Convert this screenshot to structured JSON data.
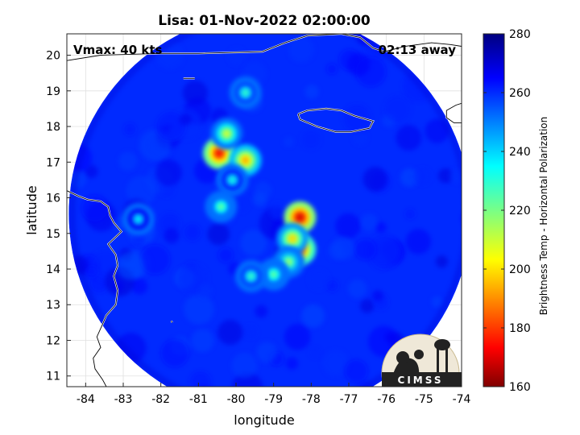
{
  "chart_data": {
    "type": "heatmap",
    "title": "Lisa: 01-Nov-2022 02:00:00",
    "xlabel": "longitude",
    "ylabel": "latitude",
    "xlim": [
      -84.5,
      -74
    ],
    "ylim": [
      10.7,
      20.6
    ],
    "xticks": [
      -84,
      -83,
      -82,
      -81,
      -80,
      -79,
      -78,
      -77,
      -76,
      -75,
      -74
    ],
    "yticks": [
      11,
      12,
      13,
      14,
      15,
      16,
      17,
      18,
      19,
      20
    ],
    "grid": true,
    "annotations": {
      "top_left": "Vmax: 40 kts",
      "top_right": "02:13 away",
      "logo": "CIMSS"
    },
    "swath": {
      "center_lon": -79.1,
      "center_lat": 15.55,
      "radius_deg": 5.35,
      "clipped_to_axes": true
    },
    "background_tb": 260,
    "features": [
      {
        "lon": -78.3,
        "lat": 15.45,
        "tb": 168
      },
      {
        "lon": -78.3,
        "lat": 14.55,
        "tb": 178
      },
      {
        "lon": -78.5,
        "lat": 14.85,
        "tb": 198
      },
      {
        "lon": -78.6,
        "lat": 14.2,
        "tb": 215
      },
      {
        "lon": -79.0,
        "lat": 13.85,
        "tb": 222
      },
      {
        "lon": -79.6,
        "lat": 13.8,
        "tb": 228
      },
      {
        "lon": -80.45,
        "lat": 17.25,
        "tb": 172
      },
      {
        "lon": -80.25,
        "lat": 17.8,
        "tb": 208
      },
      {
        "lon": -79.75,
        "lat": 17.05,
        "tb": 192
      },
      {
        "lon": -80.1,
        "lat": 16.5,
        "tb": 232
      },
      {
        "lon": -79.75,
        "lat": 18.95,
        "tb": 228
      },
      {
        "lon": -80.4,
        "lat": 15.75,
        "tb": 222
      },
      {
        "lon": -82.6,
        "lat": 15.4,
        "tb": 236
      }
    ],
    "colorbar": {
      "label": "Brightness Temp - Horizontal Polarization",
      "range": [
        160,
        280
      ],
      "ticks": [
        160,
        180,
        200,
        220,
        240,
        260,
        280
      ],
      "colormap": "jet"
    },
    "coastlines": {
      "jamaica": [
        [
          -78.35,
          18.35
        ],
        [
          -78.1,
          18.45
        ],
        [
          -77.6,
          18.5
        ],
        [
          -77.2,
          18.45
        ],
        [
          -76.85,
          18.3
        ],
        [
          -76.35,
          18.15
        ],
        [
          -76.45,
          17.95
        ],
        [
          -76.95,
          17.85
        ],
        [
          -77.35,
          17.85
        ],
        [
          -77.85,
          18.0
        ],
        [
          -78.3,
          18.2
        ],
        [
          -78.35,
          18.35
        ]
      ],
      "cuba": [
        [
          -84.5,
          19.85
        ],
        [
          -83.6,
          20.0
        ],
        [
          -82.0,
          20.05
        ],
        [
          -81.0,
          20.05
        ],
        [
          -79.3,
          20.1
        ],
        [
          -78.7,
          20.35
        ],
        [
          -78.1,
          20.55
        ],
        [
          -77.2,
          20.6
        ],
        [
          -76.7,
          20.5
        ],
        [
          -76.35,
          20.2
        ],
        [
          -76.05,
          20.1
        ],
        [
          -75.5,
          20.25
        ],
        [
          -74.8,
          20.35
        ],
        [
          -74.3,
          20.3
        ],
        [
          -74.0,
          20.25
        ]
      ],
      "haiti": [
        [
          -74.0,
          18.65
        ],
        [
          -74.15,
          18.6
        ],
        [
          -74.4,
          18.45
        ],
        [
          -74.4,
          18.25
        ],
        [
          -74.2,
          18.1
        ],
        [
          -74.0,
          18.1
        ]
      ],
      "central_america": [
        [
          -84.5,
          16.2
        ],
        [
          -84.2,
          16.05
        ],
        [
          -83.95,
          15.95
        ],
        [
          -83.6,
          15.9
        ],
        [
          -83.4,
          15.75
        ],
        [
          -83.35,
          15.5
        ],
        [
          -83.25,
          15.3
        ],
        [
          -83.05,
          15.05
        ],
        [
          -83.2,
          14.9
        ],
        [
          -83.4,
          14.7
        ],
        [
          -83.2,
          14.4
        ],
        [
          -83.15,
          14.1
        ],
        [
          -83.25,
          13.8
        ],
        [
          -83.15,
          13.4
        ],
        [
          -83.2,
          13.0
        ],
        [
          -83.45,
          12.7
        ],
        [
          -83.55,
          12.45
        ],
        [
          -83.7,
          12.1
        ],
        [
          -83.6,
          11.8
        ],
        [
          -83.8,
          11.5
        ],
        [
          -83.75,
          11.2
        ],
        [
          -83.55,
          10.9
        ],
        [
          -83.45,
          10.7
        ]
      ],
      "cayman": [
        [
          -81.4,
          19.35
        ],
        [
          -81.1,
          19.35
        ]
      ],
      "san_andres": [
        [
          -81.72,
          12.55
        ],
        [
          -81.7,
          12.5
        ]
      ]
    }
  }
}
